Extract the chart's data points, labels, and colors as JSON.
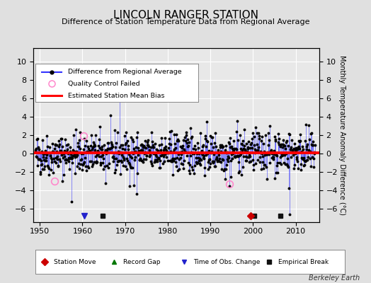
{
  "title": "LINCOLN RANGER STATION",
  "subtitle": "Difference of Station Temperature Data from Regional Average",
  "ylabel": "Monthly Temperature Anomaly Difference (°C)",
  "xlim": [
    1948.5,
    2015.5
  ],
  "ylim": [
    -7.5,
    11.5
  ],
  "yticks": [
    -6,
    -4,
    -2,
    0,
    2,
    4,
    6,
    8,
    10
  ],
  "xticks": [
    1950,
    1960,
    1970,
    1980,
    1990,
    2000,
    2010
  ],
  "background_color": "#e0e0e0",
  "plot_bg_color": "#e8e8e8",
  "grid_color": "#ffffff",
  "line_color": "#3333ff",
  "dot_color": "#000000",
  "bias_color": "#ff0000",
  "bias_value": 0.05,
  "seed": 42,
  "n_points": 780,
  "start_year": 1949.0,
  "end_year": 2014.5,
  "watermark": "Berkeley Earth",
  "title_fontsize": 11,
  "subtitle_fontsize": 8,
  "ylabel_fontsize": 7,
  "tick_fontsize": 8,
  "qc_times": [
    1953.5,
    1960.2,
    1994.5
  ],
  "qc_vals": [
    -3.0,
    1.9,
    -3.3
  ],
  "time_obs_changes": [
    1960.5
  ],
  "empirical_breaks": [
    1964.8,
    2000.3,
    2006.5
  ],
  "station_moves": [
    1999.5
  ]
}
